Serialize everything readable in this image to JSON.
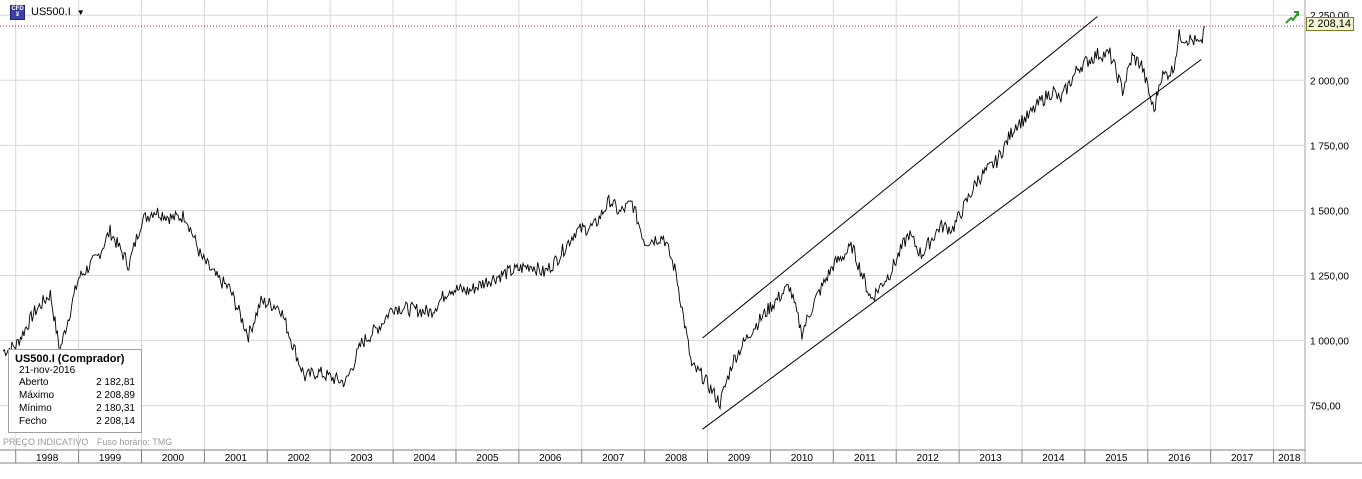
{
  "header": {
    "symbol": "US500.I",
    "icon": "cfd-icon",
    "dropdown": "chevron-down-icon"
  },
  "last_price_label": "2 208,14",
  "trend_icon": "trend-up-icon",
  "info": {
    "title": "US500.I (Comprador)",
    "date": "21-nov-2016",
    "rows": [
      {
        "label": "Aberto",
        "value": "2 182,81"
      },
      {
        "label": "Máximo",
        "value": "2 208,89"
      },
      {
        "label": "Mínimo",
        "value": "2 180,31"
      },
      {
        "label": "Fecho",
        "value": "2 208,14"
      }
    ]
  },
  "footer": {
    "price_type": "PREÇO INDICATIVO",
    "timezone": "Fuso horário: TMG"
  },
  "colors": {
    "line": "#000000",
    "grid": "#d8d8d8",
    "ref": "#a0306a"
  },
  "chart_data": {
    "type": "line",
    "title": "",
    "xlabel": "",
    "ylabel": "",
    "x_ticks": [
      "1998",
      "1999",
      "2000",
      "2001",
      "2002",
      "2003",
      "2004",
      "2005",
      "2006",
      "2007",
      "2008",
      "2009",
      "2010",
      "2011",
      "2012",
      "2013",
      "2014",
      "2015",
      "2016",
      "2017",
      "2018"
    ],
    "y_ticks": [
      "750,00",
      "1 000,00",
      "1 250,00",
      "1 500,00",
      "1 750,00",
      "2 000,00",
      "2 250,00"
    ],
    "y_tick_values": [
      750,
      1000,
      1250,
      1500,
      1750,
      2000,
      2250
    ],
    "ylim": [
      580,
      2270
    ],
    "xlim": [
      1997.75,
      2018.5
    ],
    "grid": true,
    "series": [
      {
        "x": [
          1997.8,
          1998.0,
          1998.3,
          1998.55,
          1998.7,
          1999.0,
          1999.3,
          1999.5,
          1999.8,
          2000.0,
          2000.2,
          2000.5,
          2000.7,
          2000.95,
          2001.2,
          2001.4,
          2001.7,
          2001.9,
          2002.2,
          2002.5,
          2002.6,
          2002.8,
          2003.1,
          2003.25,
          2003.5,
          2003.8,
          2004.0,
          2004.3,
          2004.6,
          2004.9,
          2005.2,
          2005.5,
          2005.8,
          2006.2,
          2006.4,
          2006.6,
          2006.9,
          2007.2,
          2007.45,
          2007.6,
          2007.8,
          2008.0,
          2008.3,
          2008.5,
          2008.75,
          2008.9,
          2009.2,
          2009.4,
          2009.7,
          2010.0,
          2010.3,
          2010.5,
          2010.7,
          2011.0,
          2011.3,
          2011.6,
          2011.75,
          2011.9,
          2012.2,
          2012.4,
          2012.7,
          2012.9,
          2013.3,
          2013.6,
          2013.9,
          2014.1,
          2014.3,
          2014.5,
          2014.6,
          2014.9,
          2015.2,
          2015.4,
          2015.6,
          2015.75,
          2015.9,
          2016.1,
          2016.2,
          2016.4,
          2016.5,
          2016.75,
          2016.85,
          2016.9
        ],
        "values": [
          960,
          980,
          1110,
          1180,
          960,
          1240,
          1320,
          1420,
          1290,
          1460,
          1500,
          1470,
          1480,
          1320,
          1240,
          1200,
          1020,
          1150,
          1130,
          920,
          860,
          880,
          850,
          840,
          990,
          1060,
          1130,
          1120,
          1110,
          1200,
          1190,
          1230,
          1260,
          1290,
          1260,
          1310,
          1420,
          1440,
          1540,
          1490,
          1530,
          1380,
          1400,
          1260,
          900,
          870,
          760,
          920,
          1040,
          1130,
          1210,
          1030,
          1150,
          1290,
          1360,
          1160,
          1210,
          1260,
          1410,
          1330,
          1440,
          1430,
          1620,
          1690,
          1830,
          1860,
          1920,
          1960,
          1920,
          2050,
          2100,
          2100,
          1960,
          2090,
          2060,
          1880,
          2010,
          2040,
          2170,
          2150,
          2130,
          2208.14
        ],
        "name": ""
      }
    ],
    "trend_channel": {
      "upper": {
        "from": [
          2008.92,
          1010
        ],
        "to": [
          2015.2,
          2245
        ]
      },
      "lower": {
        "from": [
          2008.92,
          660
        ],
        "to": [
          2016.85,
          2080
        ]
      }
    },
    "reference_line": 2208.14
  }
}
